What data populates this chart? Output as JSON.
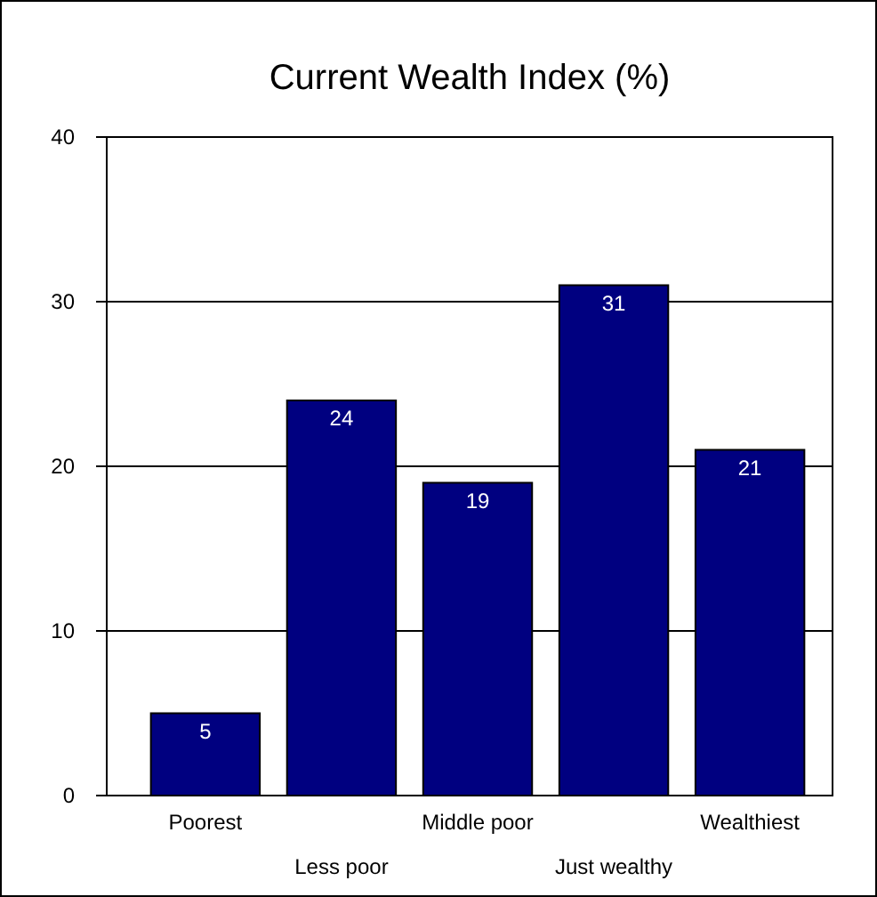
{
  "chart_data": {
    "type": "bar",
    "title": "Current Wealth Index (%)",
    "categories": [
      "Poorest",
      "Less poor",
      "Middle poor",
      "Just wealthy",
      "Wealthiest"
    ],
    "values": [
      5,
      24,
      19,
      31,
      21
    ],
    "color": "#000080",
    "ylim": [
      0,
      40
    ],
    "yticks": [
      0,
      10,
      20,
      30,
      40
    ],
    "grid": "y",
    "data_labels": true
  }
}
